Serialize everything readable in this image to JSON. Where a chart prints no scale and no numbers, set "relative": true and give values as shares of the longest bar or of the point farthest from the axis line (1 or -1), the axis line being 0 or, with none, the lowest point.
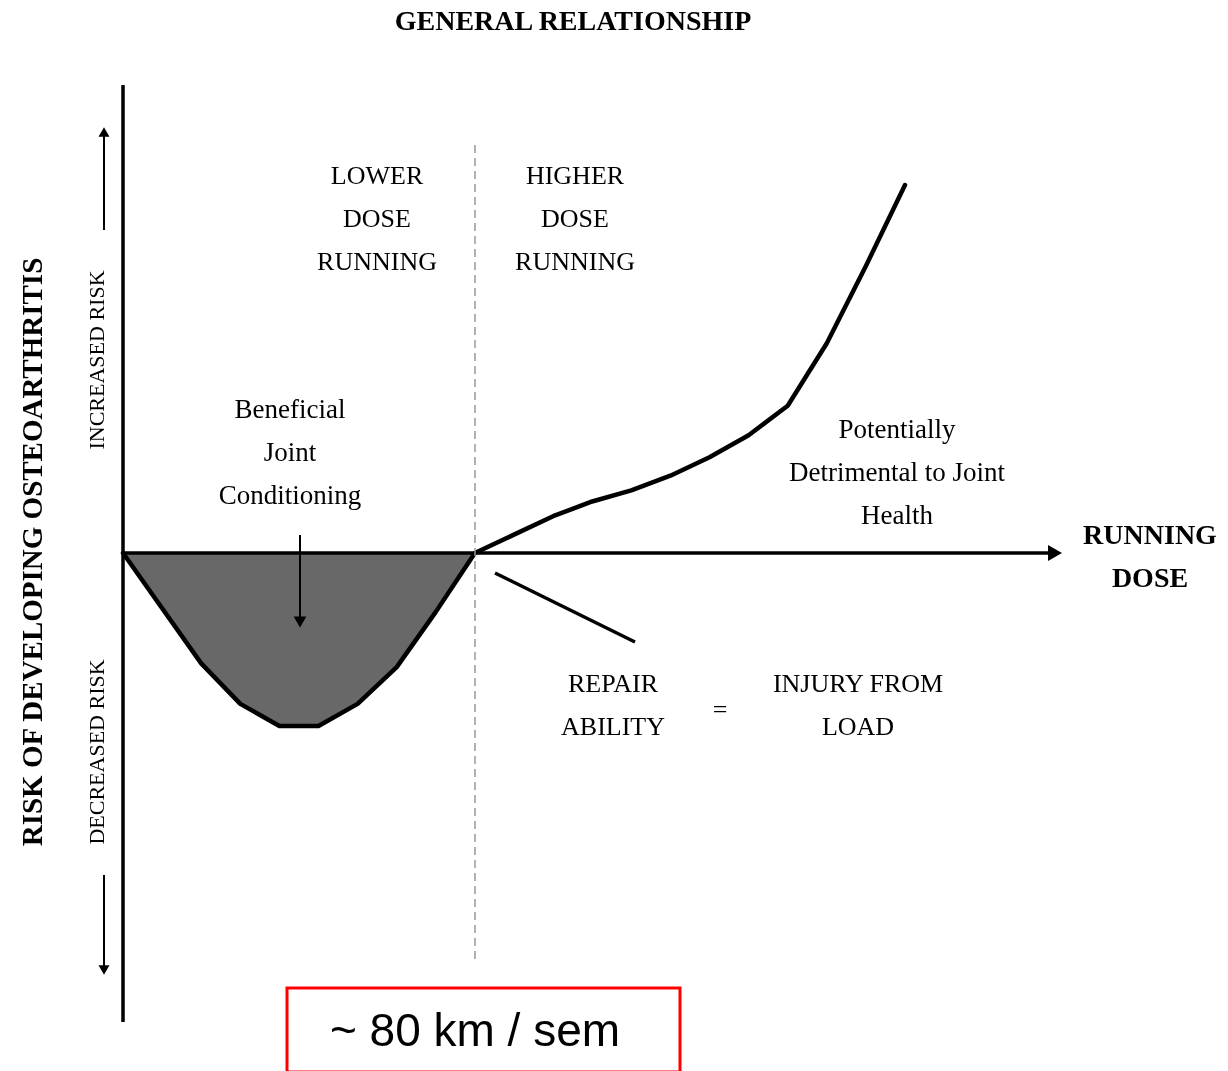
{
  "chart_data": {
    "type": "line",
    "relative": true,
    "title": "GENERAL RELATIONSHIP",
    "ylabel": "RISK OF DEVELOPING OSTEOARTHRITIS",
    "categories": [
      null,
      null,
      null,
      null,
      null,
      null,
      null,
      null,
      null,
      null,
      null,
      null,
      null,
      null,
      null,
      null,
      null,
      null,
      null,
      null,
      null
    ],
    "series": [
      {
        "type": "area",
        "color": "#686868",
        "values": [
          0,
          -0.15,
          -0.3,
          -0.41,
          -0.47,
          -0.47,
          -0.41,
          -0.31,
          -0.16,
          0,
          null,
          null,
          null,
          null,
          null,
          null,
          null,
          null,
          null,
          null,
          null
        ]
      },
      {
        "color": "#000000",
        "values": [
          0,
          -0.15,
          -0.3,
          -0.41,
          -0.47,
          -0.47,
          -0.41,
          -0.31,
          -0.16,
          0,
          0.05,
          0.1,
          0.14,
          0.17,
          0.21,
          0.26,
          0.32,
          0.4,
          0.57,
          0.78,
          1
        ]
      }
    ],
    "annotations": [
      "INCREASED RISK",
      "DECREASED RISK",
      "LOWER\nDOSE\nRUNNING",
      "HIGHER\nDOSE\nRUNNING",
      "Beneficial\nJoint\nConditioning",
      "Potentially\nDetrimental to Joint\nHealth",
      "REPAIR\nABILITY",
      "=",
      "INJURY FROM\nLOAD",
      "~ 80 km / sem",
      "RUNNING\nDOSE"
    ],
    "marker": "none",
    "line_style": "solid"
  }
}
